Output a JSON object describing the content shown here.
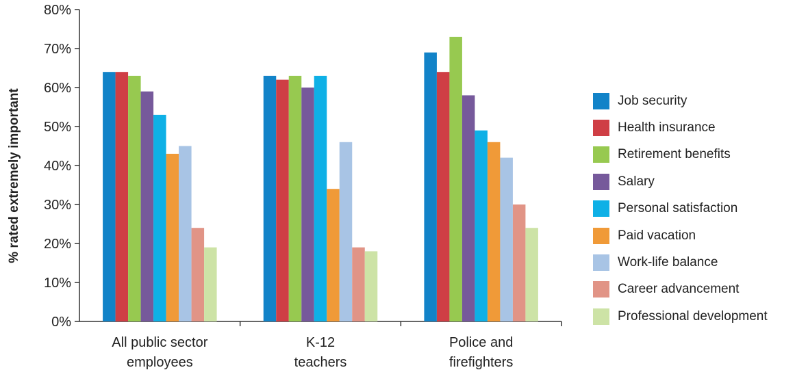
{
  "chart_data": {
    "type": "bar",
    "ylabel": "% rated extremely important",
    "xlabel": "",
    "ylim": [
      0,
      80
    ],
    "yticks": [
      "0%",
      "10%",
      "20%",
      "30%",
      "40%",
      "50%",
      "60%",
      "70%",
      "80%"
    ],
    "categories": [
      [
        "All public sector",
        "employees"
      ],
      [
        "K-12",
        "teachers"
      ],
      [
        "Police and",
        "firefighters"
      ]
    ],
    "legend_position": "right",
    "grid": false,
    "series": [
      {
        "name": "Job security",
        "color": "#1283c8",
        "values": [
          64,
          63,
          69
        ]
      },
      {
        "name": "Health insurance",
        "color": "#cf3e45",
        "values": [
          64,
          62,
          64
        ]
      },
      {
        "name": "Retirement benefits",
        "color": "#97c950",
        "values": [
          63,
          63,
          73
        ]
      },
      {
        "name": "Salary",
        "color": "#76599b",
        "values": [
          59,
          60,
          58
        ]
      },
      {
        "name": "Personal satisfaction",
        "color": "#0eb0e6",
        "values": [
          53,
          63,
          49
        ]
      },
      {
        "name": "Paid vacation",
        "color": "#f09a38",
        "values": [
          43,
          34,
          46
        ]
      },
      {
        "name": "Work-life balance",
        "color": "#a8c4e5",
        "values": [
          45,
          46,
          42
        ]
      },
      {
        "name": "Career advancement",
        "color": "#e19486",
        "values": [
          24,
          19,
          30
        ]
      },
      {
        "name": "Professional development",
        "color": "#cde3a6",
        "values": [
          19,
          18,
          24
        ]
      }
    ]
  }
}
